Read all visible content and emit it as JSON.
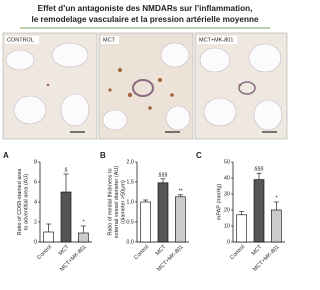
{
  "header": {
    "title": [
      "Effet d’un antagoniste des NMDARs sur l’inflammation,",
      "le remodelage vasculaire et la pression artérielle moyenne"
    ]
  },
  "images": [
    {
      "label": "CONTROL"
    },
    {
      "label": "MCT"
    },
    {
      "label": "MCT+MK-801"
    }
  ],
  "chart_data": [
    {
      "type": "bar",
      "label": "A",
      "ylabel": [
        "Ratio of CD68-stained area",
        "to adventitial area (AU)"
      ],
      "categories": [
        "Control",
        "MCT",
        "MCT+MK-801"
      ],
      "values": [
        1,
        5,
        0.9
      ],
      "errors": [
        0.8,
        1.8,
        0.7
      ],
      "colors": [
        "#ffffff",
        "#555555",
        "#cccccc"
      ],
      "annotations": [
        null,
        "§",
        "*"
      ],
      "ylim": [
        0,
        8
      ],
      "yticks": [
        0,
        2,
        4,
        6,
        8
      ]
    },
    {
      "type": "bar",
      "label": "B",
      "ylabel": [
        "Ratio of medial thickness to",
        "external vessel diameter (AU)",
        "(diameter >50µm)"
      ],
      "categories": [
        "Control",
        "MCT",
        "MCT+MK-801"
      ],
      "values": [
        1.0,
        1.48,
        1.13
      ],
      "errors": [
        0.05,
        0.1,
        0.05
      ],
      "colors": [
        "#ffffff",
        "#555555",
        "#cccccc"
      ],
      "annotations": [
        null,
        "§§§",
        "**"
      ],
      "ylim": [
        0,
        2
      ],
      "yticks": [
        {
          "value": 0,
          "label": "0.0"
        },
        0.5,
        {
          "value": 1,
          "label": "1.0"
        },
        1.5,
        {
          "value": 2,
          "label": "2.0"
        }
      ]
    },
    {
      "type": "bar",
      "label": "C",
      "ylabel": [
        "mPAP (mmHg)"
      ],
      "categories": [
        "Control",
        "MCT",
        "MCT+MK-801"
      ],
      "values": [
        17,
        39,
        20
      ],
      "errors": [
        2,
        4,
        5
      ],
      "colors": [
        "#ffffff",
        "#555555",
        "#cccccc"
      ],
      "annotations": [
        null,
        "§§§",
        "*"
      ],
      "ylim": [
        0,
        50
      ],
      "yticks": [
        0,
        10,
        20,
        30,
        40,
        50
      ]
    }
  ]
}
